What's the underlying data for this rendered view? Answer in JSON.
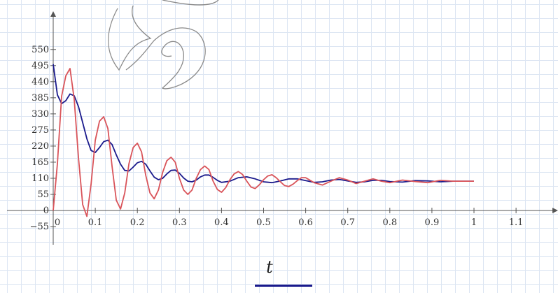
{
  "chart_data": {
    "type": "line",
    "xlabel": "t",
    "ylabel": "",
    "xlim": [
      0,
      1.2
    ],
    "ylim": [
      -70,
      570
    ],
    "x_ticks": [
      0,
      0.1,
      0.2,
      0.3,
      0.4,
      0.5,
      0.6,
      0.7,
      0.8,
      0.9,
      1,
      1.1
    ],
    "x_tick_labels": [
      "0",
      "0.1",
      "0.2",
      "0.3",
      "0.4",
      "0.5",
      "0.6",
      "0.7",
      "0.8",
      "0.9",
      "1",
      "1.1"
    ],
    "y_ticks": [
      -55,
      0,
      55,
      110,
      165,
      220,
      275,
      330,
      385,
      440,
      495,
      550
    ],
    "y_tick_labels": [
      "−55",
      "0",
      "55",
      "110",
      "165",
      "220",
      "275",
      "330",
      "385",
      "440",
      "495",
      "550"
    ],
    "grid": true,
    "series": [
      {
        "color": "#1a1a8c",
        "x": [
          0,
          0.01,
          0.02,
          0.03,
          0.04,
          0.05,
          0.06,
          0.07,
          0.08,
          0.09,
          0.1,
          0.11,
          0.12,
          0.13,
          0.14,
          0.15,
          0.16,
          0.17,
          0.18,
          0.19,
          0.2,
          0.21,
          0.22,
          0.23,
          0.24,
          0.25,
          0.26,
          0.27,
          0.28,
          0.29,
          0.3,
          0.31,
          0.32,
          0.33,
          0.34,
          0.35,
          0.36,
          0.37,
          0.38,
          0.39,
          0.4,
          0.42,
          0.44,
          0.46,
          0.48,
          0.5,
          0.52,
          0.54,
          0.56,
          0.58,
          0.6,
          0.62,
          0.64,
          0.66,
          0.68,
          0.7,
          0.72,
          0.74,
          0.76,
          0.78,
          0.8,
          0.83,
          0.86,
          0.89,
          0.92,
          0.95,
          1
        ],
        "values": [
          500,
          395,
          365,
          375,
          398,
          392,
          355,
          300,
          245,
          205,
          198,
          215,
          235,
          240,
          225,
          190,
          158,
          137,
          135,
          148,
          163,
          168,
          158,
          135,
          114,
          105,
          110,
          125,
          137,
          138,
          127,
          111,
          100,
          98,
          104,
          115,
          121,
          121,
          113,
          103,
          96,
          100,
          112,
          115,
          108,
          98,
          95,
          101,
          108,
          108,
          102,
          96,
          98,
          104,
          106,
          101,
          96,
          98,
          103,
          103,
          99,
          97,
          102,
          101,
          98,
          100,
          100
        ]
      },
      {
        "color": "#d9545a",
        "x": [
          0,
          0.01,
          0.02,
          0.03,
          0.04,
          0.05,
          0.06,
          0.07,
          0.08,
          0.09,
          0.1,
          0.11,
          0.12,
          0.13,
          0.14,
          0.15,
          0.16,
          0.17,
          0.18,
          0.19,
          0.2,
          0.21,
          0.22,
          0.23,
          0.24,
          0.25,
          0.26,
          0.27,
          0.28,
          0.29,
          0.3,
          0.31,
          0.32,
          0.33,
          0.34,
          0.35,
          0.36,
          0.37,
          0.38,
          0.39,
          0.4,
          0.41,
          0.42,
          0.43,
          0.44,
          0.45,
          0.46,
          0.47,
          0.48,
          0.49,
          0.5,
          0.51,
          0.52,
          0.53,
          0.54,
          0.55,
          0.56,
          0.57,
          0.58,
          0.59,
          0.6,
          0.62,
          0.64,
          0.66,
          0.68,
          0.7,
          0.72,
          0.74,
          0.76,
          0.78,
          0.8,
          0.83,
          0.86,
          0.89,
          0.92,
          0.95,
          1
        ],
        "values": [
          0,
          160,
          390,
          460,
          485,
          380,
          180,
          20,
          -20,
          90,
          240,
          305,
          320,
          280,
          150,
          35,
          5,
          60,
          160,
          215,
          230,
          200,
          120,
          60,
          40,
          70,
          130,
          170,
          182,
          165,
          110,
          70,
          55,
          70,
          110,
          140,
          152,
          140,
          100,
          72,
          62,
          78,
          105,
          125,
          133,
          123,
          100,
          80,
          75,
          88,
          105,
          118,
          122,
          112,
          98,
          85,
          82,
          90,
          102,
          112,
          112,
          95,
          87,
          100,
          112,
          104,
          92,
          100,
          108,
          100,
          95,
          104,
          99,
          95,
          103,
          100,
          100
        ]
      }
    ]
  },
  "legend": {
    "swatch_color": "#1a1a8c"
  }
}
